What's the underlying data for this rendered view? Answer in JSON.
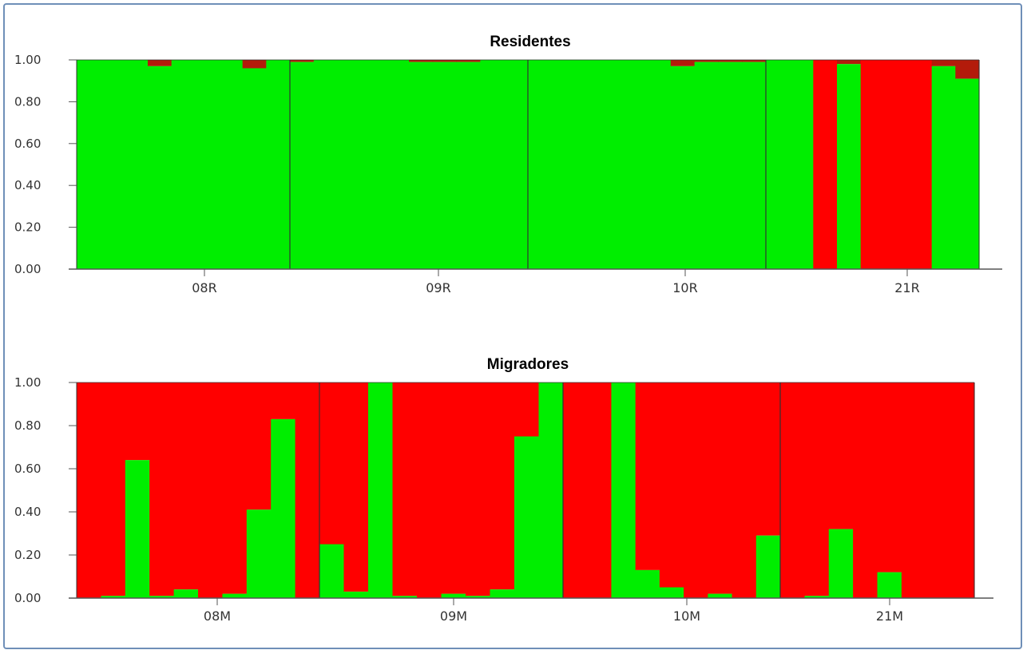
{
  "colors": {
    "green": "#00ee00",
    "red": "#ff0000",
    "dark_red": "#b31b0b",
    "axis": "#555555",
    "divider": "#333333"
  },
  "chart_data": [
    {
      "type": "bar",
      "title": "Residentes",
      "ylim": [
        0,
        1
      ],
      "yticks": [
        "1.00",
        "0.80",
        "0.60",
        "0.40",
        "0.20",
        "0.00"
      ],
      "categories": [
        "08R",
        "09R",
        "10R",
        "21R"
      ],
      "series": [
        {
          "values": [
            [
              1.0,
              1.0,
              1.0,
              0.97,
              1.0,
              1.0,
              1.0,
              0.96,
              1.0
            ],
            [
              0.99,
              1.0,
              1.0,
              1.0,
              1.0,
              0.99,
              0.99,
              0.99,
              1.0,
              1.0
            ],
            [
              1.0,
              1.0,
              1.0,
              1.0,
              1.0,
              1.0,
              0.97,
              0.99,
              0.99,
              0.99
            ],
            [
              1.0,
              1.0,
              0.0,
              0.98,
              0.0,
              0.0,
              0.0,
              0.97,
              0.91
            ]
          ]
        }
      ]
    },
    {
      "type": "bar",
      "title": "Migradores",
      "ylim": [
        0,
        1
      ],
      "yticks": [
        "1.00",
        "0.80",
        "0.60",
        "0.40",
        "0.20",
        "0.00"
      ],
      "categories": [
        "08M",
        "09M",
        "10M",
        "21M"
      ],
      "series": [
        {
          "values": [
            [
              0.0,
              0.01,
              0.64,
              0.01,
              0.04,
              0.0,
              0.02,
              0.41,
              0.83,
              0.0
            ],
            [
              0.25,
              0.03,
              1.0,
              0.01,
              0.0,
              0.02,
              0.01,
              0.04,
              0.75,
              1.0
            ],
            [
              0.0,
              0.0,
              1.0,
              0.13,
              0.05,
              0.0,
              0.02,
              0.0,
              0.29
            ],
            [
              0.0,
              0.01,
              0.32,
              0.0,
              0.12,
              0.0,
              0.0,
              0.0
            ]
          ]
        }
      ]
    }
  ]
}
